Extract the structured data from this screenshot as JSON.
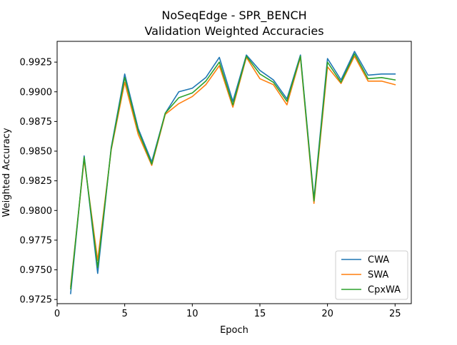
{
  "chart_data": {
    "type": "line",
    "title": "NoSeqEdge - SPR_BENCH",
    "subtitle": "Validation Weighted Accuracies",
    "xlabel": "Epoch",
    "ylabel": "Weighted Accuracy",
    "xlim": [
      0,
      26.2
    ],
    "ylim": [
      0.97215,
      0.99425
    ],
    "xticks": [
      0,
      5,
      10,
      15,
      20,
      25
    ],
    "xtick_labels": [
      "0",
      "5",
      "10",
      "15",
      "20",
      "25"
    ],
    "yticks": [
      0.9725,
      0.975,
      0.9775,
      0.98,
      0.9825,
      0.985,
      0.9875,
      0.99,
      0.9925
    ],
    "ytick_labels": [
      "0.9725",
      "0.9750",
      "0.9775",
      "0.9800",
      "0.9825",
      "0.9850",
      "0.9875",
      "0.9900",
      "0.9925"
    ],
    "grid": false,
    "legend_position": "lower-right",
    "x": [
      1,
      2,
      3,
      4,
      5,
      6,
      7,
      8,
      9,
      10,
      11,
      12,
      13,
      14,
      15,
      16,
      17,
      18,
      19,
      20,
      21,
      22,
      23,
      24,
      25
    ],
    "series": [
      {
        "name": "CWA",
        "color": "#1f77b4",
        "values": [
          0.973,
          0.9846,
          0.9747,
          0.9853,
          0.9915,
          0.9869,
          0.9841,
          0.9882,
          0.99,
          0.9903,
          0.9912,
          0.9929,
          0.9892,
          0.9931,
          0.9918,
          0.991,
          0.9894,
          0.9931,
          0.981,
          0.9928,
          0.991,
          0.9934,
          0.9914,
          0.9915,
          0.9915
        ]
      },
      {
        "name": "SWA",
        "color": "#ff7f0e",
        "values": [
          0.9736,
          0.9843,
          0.9758,
          0.9851,
          0.9908,
          0.9864,
          0.9838,
          0.9881,
          0.989,
          0.9896,
          0.9906,
          0.9922,
          0.9887,
          0.9929,
          0.9911,
          0.9906,
          0.9889,
          0.9929,
          0.9806,
          0.9921,
          0.9907,
          0.993,
          0.9909,
          0.9909,
          0.9906
        ]
      },
      {
        "name": "CpxWA",
        "color": "#2ca02c",
        "values": [
          0.9734,
          0.9845,
          0.9752,
          0.9852,
          0.9912,
          0.9867,
          0.9839,
          0.9882,
          0.9895,
          0.9899,
          0.9909,
          0.9925,
          0.9889,
          0.993,
          0.9915,
          0.9908,
          0.9892,
          0.993,
          0.9808,
          0.9925,
          0.9908,
          0.9932,
          0.9911,
          0.9912,
          0.991
        ]
      }
    ]
  }
}
